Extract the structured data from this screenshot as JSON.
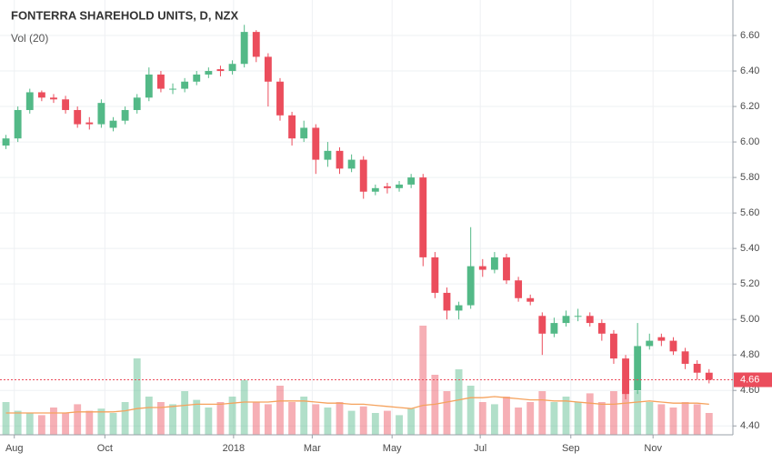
{
  "chart_data": {
    "type": "candlestick",
    "title": "FONTERRA SHAREHOLD UNITS, D, NZX",
    "indicator_label": "Vol (20)",
    "x": [
      0,
      1,
      2,
      3,
      4,
      5,
      6,
      7,
      8,
      9,
      10,
      11,
      12,
      13,
      14,
      15,
      16,
      17,
      18,
      19,
      20,
      21,
      22,
      23,
      24,
      25,
      26,
      27,
      28,
      29,
      30,
      31,
      32,
      33,
      34,
      35,
      36,
      37,
      38,
      39,
      40,
      41,
      42,
      43,
      44,
      45,
      46,
      47,
      48,
      49,
      50,
      51,
      52,
      53,
      54,
      55,
      56,
      57,
      58,
      59
    ],
    "open": [
      5.98,
      6.02,
      6.18,
      6.28,
      6.25,
      6.24,
      6.18,
      6.11,
      6.1,
      6.08,
      6.12,
      6.18,
      6.25,
      6.38,
      6.3,
      6.3,
      6.34,
      6.38,
      6.41,
      6.4,
      6.44,
      6.62,
      6.48,
      6.34,
      6.15,
      6.02,
      6.08,
      5.9,
      5.95,
      5.85,
      5.9,
      5.72,
      5.75,
      5.74,
      5.76,
      5.8,
      5.35,
      5.15,
      5.05,
      5.08,
      5.3,
      5.28,
      5.35,
      5.22,
      5.12,
      5.02,
      4.92,
      4.98,
      5.02,
      5.02,
      4.98,
      4.92,
      4.78,
      4.6,
      4.85,
      4.9,
      4.88,
      4.82,
      4.75,
      4.7
    ],
    "high": [
      6.04,
      6.2,
      6.3,
      6.29,
      6.27,
      6.26,
      6.2,
      6.14,
      6.24,
      6.14,
      6.2,
      6.27,
      6.42,
      6.4,
      6.33,
      6.36,
      6.4,
      6.42,
      6.43,
      6.46,
      6.66,
      6.63,
      6.5,
      6.36,
      6.17,
      6.12,
      6.1,
      6.0,
      5.97,
      5.93,
      5.92,
      5.76,
      5.77,
      5.78,
      5.82,
      5.82,
      5.38,
      5.18,
      5.1,
      5.52,
      5.34,
      5.38,
      5.37,
      5.24,
      5.14,
      5.04,
      5.01,
      5.05,
      5.06,
      5.04,
      5.0,
      4.94,
      4.8,
      4.98,
      4.92,
      4.92,
      4.9,
      4.84,
      4.77,
      4.72
    ],
    "low": [
      5.96,
      6.0,
      6.16,
      6.23,
      6.22,
      6.16,
      6.08,
      6.07,
      6.08,
      6.06,
      6.1,
      6.16,
      6.23,
      6.28,
      6.27,
      6.28,
      6.32,
      6.36,
      6.37,
      6.38,
      6.42,
      6.45,
      6.2,
      6.12,
      5.98,
      6.0,
      5.82,
      5.86,
      5.82,
      5.83,
      5.68,
      5.7,
      5.71,
      5.72,
      5.74,
      5.3,
      5.12,
      5.0,
      5.0,
      5.06,
      5.24,
      5.26,
      5.2,
      5.1,
      5.08,
      4.8,
      4.9,
      4.96,
      4.99,
      4.96,
      4.88,
      4.75,
      4.55,
      4.58,
      4.83,
      4.85,
      4.8,
      4.72,
      4.66,
      4.64
    ],
    "close": [
      6.02,
      6.18,
      6.28,
      6.25,
      6.24,
      6.18,
      6.1,
      6.1,
      6.22,
      6.12,
      6.18,
      6.25,
      6.38,
      6.3,
      6.3,
      6.34,
      6.38,
      6.4,
      6.4,
      6.44,
      6.62,
      6.48,
      6.34,
      6.15,
      6.02,
      6.08,
      5.9,
      5.95,
      5.85,
      5.9,
      5.72,
      5.74,
      5.74,
      5.76,
      5.8,
      5.35,
      5.15,
      5.05,
      5.08,
      5.3,
      5.28,
      5.35,
      5.22,
      5.12,
      5.1,
      4.92,
      4.98,
      5.02,
      5.02,
      4.98,
      4.92,
      4.78,
      4.58,
      4.85,
      4.88,
      4.88,
      4.82,
      4.75,
      4.7,
      4.66
    ],
    "volume": [
      30,
      22,
      20,
      18,
      25,
      20,
      28,
      22,
      24,
      20,
      30,
      70,
      35,
      30,
      28,
      40,
      32,
      25,
      30,
      35,
      50,
      30,
      28,
      45,
      30,
      35,
      28,
      25,
      30,
      22,
      26,
      20,
      22,
      18,
      24,
      100,
      55,
      40,
      60,
      45,
      30,
      28,
      35,
      25,
      30,
      40,
      30,
      35,
      30,
      38,
      30,
      40,
      50,
      40,
      30,
      28,
      25,
      30,
      28,
      20
    ],
    "volume_ma": [
      20,
      20,
      20,
      20,
      20,
      20,
      21,
      21,
      21,
      21,
      22,
      24,
      25,
      25,
      26,
      27,
      28,
      28,
      28,
      29,
      30,
      30,
      30,
      31,
      31,
      31,
      30,
      29,
      29,
      28,
      28,
      27,
      26,
      25,
      24,
      27,
      28,
      30,
      32,
      34,
      34,
      35,
      34,
      33,
      32,
      32,
      31,
      31,
      30,
      29,
      28,
      28,
      29,
      30,
      31,
      30,
      29,
      29,
      29,
      28
    ],
    "vlim": [
      0,
      100
    ],
    "up_color": "#53b987",
    "down_color": "#eb4d5c",
    "ma_color": "#f5a25d",
    "last_price": 4.66,
    "xlim": [
      -0.5,
      61
    ],
    "xticks": [
      {
        "value": 0.7,
        "label": "Aug"
      },
      {
        "value": 8.3,
        "label": "Oct"
      },
      {
        "value": 19.1,
        "label": "2018"
      },
      {
        "value": 25.7,
        "label": "Mar"
      },
      {
        "value": 32.4,
        "label": "May"
      },
      {
        "value": 39.8,
        "label": "Jul"
      },
      {
        "value": 47.4,
        "label": "Sep"
      },
      {
        "value": 54.3,
        "label": "Nov"
      }
    ],
    "ylim": [
      4.35,
      6.8
    ],
    "yticks": [
      {
        "value": 4.4,
        "label": "4.40"
      },
      {
        "value": 4.6,
        "label": "4.60"
      },
      {
        "value": 4.8,
        "label": "4.80"
      },
      {
        "value": 5.0,
        "label": "5.00"
      },
      {
        "value": 5.2,
        "label": "5.20"
      },
      {
        "value": 5.4,
        "label": "5.40"
      },
      {
        "value": 5.6,
        "label": "5.60"
      },
      {
        "value": 5.8,
        "label": "5.80"
      },
      {
        "value": 6.0,
        "label": "6.00"
      },
      {
        "value": 6.2,
        "label": "6.20"
      },
      {
        "value": 6.4,
        "label": "6.40"
      },
      {
        "value": 6.6,
        "label": "6.60"
      }
    ],
    "grid": true
  }
}
